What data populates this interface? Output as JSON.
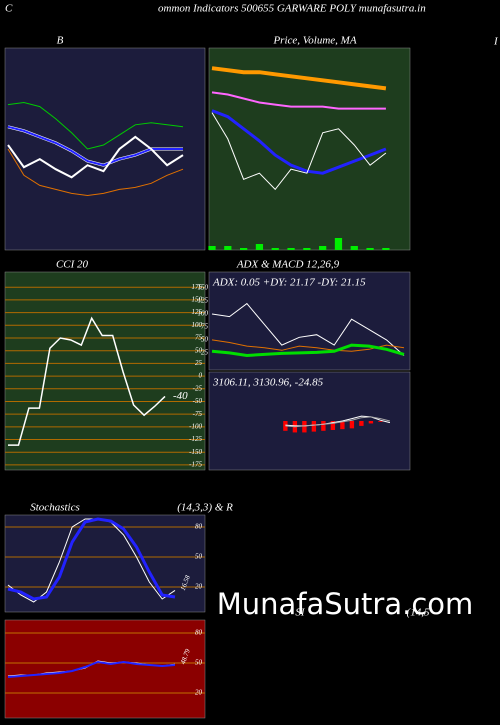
{
  "header": {
    "lead": "C",
    "title": "ommon  Indicators 500655 GARWARE POLY munafasutra.in",
    "edge": "I"
  },
  "watermark": "MunafaSutra.com",
  "chart_data": [
    {
      "type": "line",
      "title": "B",
      "background": "#1c1c3c",
      "ylim": [
        0,
        100
      ],
      "series": [
        {
          "color": "#00cc00",
          "width": 1,
          "values": [
            72,
            73,
            71,
            65,
            58,
            50,
            52,
            57,
            62,
            63,
            62,
            61
          ]
        },
        {
          "color": "#ffffff",
          "width": 3,
          "values": [
            61,
            59,
            56,
            53,
            49,
            44,
            42,
            45,
            47,
            50,
            50,
            50
          ]
        },
        {
          "color": "#2222ff",
          "width": 2,
          "values": [
            61,
            59,
            56,
            53,
            49,
            44,
            42,
            45,
            47,
            50,
            50,
            50
          ]
        },
        {
          "color": "#e07000",
          "width": 1,
          "values": [
            50,
            37,
            32,
            30,
            28,
            27,
            28,
            30,
            31,
            33,
            37,
            40
          ]
        },
        {
          "color": "#ffffff",
          "width": 2,
          "values": [
            52,
            41,
            45,
            40,
            36,
            42,
            39,
            50,
            56,
            50,
            42,
            47
          ]
        }
      ]
    },
    {
      "type": "line",
      "title": "Price, Volume, MA",
      "background": "#1e3d1e",
      "ylim": [
        0,
        100
      ],
      "series": [
        {
          "type": "bar",
          "color": "#00ee00",
          "values": [
            2,
            2,
            1,
            3,
            1,
            1,
            1,
            2,
            6,
            2,
            1,
            1
          ]
        },
        {
          "color": "#ff9900",
          "width": 4,
          "values": [
            90,
            89,
            88,
            88,
            87,
            86,
            85,
            84,
            83,
            82,
            81,
            80
          ]
        },
        {
          "color": "#ff66ff",
          "width": 2,
          "values": [
            78,
            77,
            75,
            73,
            72,
            71,
            71,
            71,
            70,
            70,
            70,
            70
          ]
        },
        {
          "color": "#2222ff",
          "width": 3,
          "values": [
            69,
            66,
            60,
            54,
            47,
            42,
            39,
            38,
            41,
            44,
            47,
            50
          ]
        },
        {
          "color": "#ffffff",
          "width": 1,
          "values": [
            68,
            55,
            35,
            38,
            30,
            40,
            38,
            58,
            60,
            52,
            42,
            48
          ]
        }
      ]
    },
    {
      "type": "line",
      "title": "CCI 20",
      "background": "#1e3d1e",
      "grid_color": "#b06a00",
      "ylim": [
        -185,
        205
      ],
      "yticks": [
        175,
        150,
        125,
        100,
        75,
        50,
        25,
        0,
        -25,
        -50,
        -75,
        -100,
        -125,
        -150,
        -175
      ],
      "show_last_value": true,
      "series": [
        {
          "color": "#ffffff",
          "width": 1.5,
          "values": [
            -136,
            -136,
            -63,
            -63,
            55,
            75,
            71,
            61,
            114,
            80,
            80,
            8,
            -57,
            -77,
            -60,
            -40
          ]
        }
      ]
    },
    {
      "type": "line",
      "title": "ADX  & MACD 12,26,9",
      "annotation": "ADX: 0.05 +DY: 21.17 -DY: 21.15",
      "background": "#1c1c3c",
      "ylim": [
        -8,
        181
      ],
      "yticks": [
        150,
        125,
        100,
        75,
        50,
        25
      ],
      "series": [
        {
          "color": "#ffffff",
          "width": 1,
          "values": [
            100,
            95,
            120,
            80,
            40,
            55,
            60,
            40,
            90,
            70,
            50,
            20
          ]
        },
        {
          "color": "#e07000",
          "width": 1,
          "values": [
            50,
            45,
            38,
            35,
            30,
            38,
            35,
            30,
            28,
            32,
            40,
            35
          ]
        },
        {
          "color": "#00dd00",
          "width": 3,
          "values": [
            28,
            25,
            20,
            22,
            24,
            25,
            26,
            28,
            40,
            38,
            32,
            22
          ]
        }
      ]
    },
    {
      "type": "line",
      "annotation": "3106.11, 3130.96, -24.85",
      "background": "#1c1c3c",
      "ylim": [
        -60,
        60
      ],
      "series": [
        {
          "type": "bar",
          "color": "#ff0000",
          "values": [
            -12,
            -14,
            -14,
            -13,
            -12,
            -11,
            -10,
            -9,
            -6,
            -3,
            -1,
            0
          ]
        },
        {
          "color": "#ffffff",
          "width": 1,
          "values": [
            -5,
            -6,
            -6,
            -5,
            -4,
            -2,
            0,
            3,
            6,
            5,
            1,
            -2
          ]
        },
        {
          "color": "#aaaaaa",
          "width": 1,
          "values": [
            -6,
            -7,
            -6,
            -5,
            -4,
            -3,
            -1,
            1,
            4,
            5,
            3,
            0
          ]
        }
      ]
    },
    {
      "type": "line",
      "title": "Stochastics",
      "subtitle": "(14,3,3) & R",
      "background": "#1c1c3c",
      "grid_color": "#b06a00",
      "ylim": [
        -5,
        92
      ],
      "yticks": [
        80,
        50,
        20
      ],
      "show_last_value": true,
      "series": [
        {
          "color": "#ffffff",
          "width": 1,
          "values": [
            22,
            12,
            5,
            15,
            45,
            80,
            88,
            88,
            85,
            72,
            50,
            25,
            8,
            16.58
          ]
        },
        {
          "color": "#2222ff",
          "width": 3,
          "values": [
            18,
            15,
            8,
            10,
            30,
            65,
            85,
            88,
            86,
            78,
            60,
            35,
            12,
            10
          ]
        }
      ]
    },
    {
      "type": "line",
      "title": "SI",
      "subtitle": "(14,5",
      "background": "#8b0000",
      "grid_color": "#c07000",
      "ylim": [
        -5,
        93
      ],
      "yticks": [
        80,
        50,
        20
      ],
      "show_last_value": true,
      "series": [
        {
          "color": "#ffffff",
          "width": 1,
          "values": [
            37,
            38,
            38,
            40,
            41,
            42,
            45,
            52,
            50,
            51,
            50,
            48,
            47,
            48.79
          ]
        },
        {
          "color": "#2222ff",
          "width": 2,
          "values": [
            36,
            37,
            38,
            39,
            40,
            42,
            46,
            51,
            49,
            51,
            49,
            48,
            47,
            48
          ]
        }
      ]
    }
  ]
}
